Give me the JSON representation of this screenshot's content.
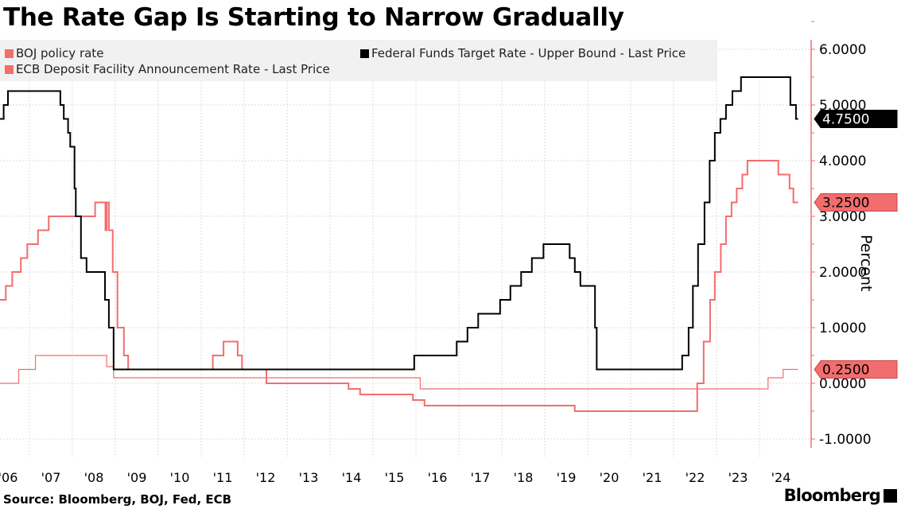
{
  "title": "The Rate Gap Is Starting to Narrow Gradually",
  "source": "Source: Bloomberg, BOJ, Fed, ECB",
  "brand": "Bloomberg",
  "chart_data": {
    "type": "line",
    "title": "The Rate Gap Is Starting to Narrow Gradually",
    "ylabel": "Percent",
    "ylim": [
      -1,
      6
    ],
    "xlim": [
      2006.3,
      2025.1
    ],
    "yticks": [
      -1,
      0,
      1,
      2,
      3,
      4,
      5,
      6
    ],
    "ytick_labels": [
      "-1.0000",
      "0.0000",
      "1.0000",
      "2.0000",
      "3.0000",
      "4.0000",
      "5.0000",
      "6.0000"
    ],
    "xtick_labels": [
      "'06",
      "'07",
      "'08",
      "'09",
      "'10",
      "'11",
      "'12",
      "'13",
      "'14",
      "'15",
      "'16",
      "'17",
      "'18",
      "'19",
      "'20",
      "'21",
      "'22",
      "'23",
      "'24"
    ],
    "xtick_years": [
      2006,
      2007,
      2008,
      2009,
      2010,
      2011,
      2012,
      2013,
      2014,
      2015,
      2016,
      2017,
      2018,
      2019,
      2020,
      2021,
      2022,
      2023,
      2024
    ],
    "grid": true,
    "legend_position": "top-left",
    "series": [
      {
        "name": "BOJ policy rate",
        "color": "#f26d6d",
        "width": 1.2,
        "last_label": "0.2500",
        "steps": [
          [
            2006.3,
            0
          ],
          [
            2006.75,
            0.25
          ],
          [
            2007.14,
            0.5
          ],
          [
            2008.8,
            0.3
          ],
          [
            2008.96,
            0.1
          ],
          [
            2016.1,
            -0.1
          ],
          [
            2024.2,
            0.1
          ],
          [
            2024.55,
            0.25
          ],
          [
            2024.9,
            0.25
          ]
        ]
      },
      {
        "name": "ECB Deposit Facility Announcement Rate - Last Price",
        "color": "#f26d6d",
        "width": 2,
        "last_label": "3.2500",
        "steps": [
          [
            2006.3,
            1.5
          ],
          [
            2006.45,
            1.75
          ],
          [
            2006.6,
            2.0
          ],
          [
            2006.8,
            2.25
          ],
          [
            2006.95,
            2.5
          ],
          [
            2007.2,
            2.75
          ],
          [
            2007.45,
            3.0
          ],
          [
            2008.53,
            3.25
          ],
          [
            2008.77,
            2.75
          ],
          [
            2008.8,
            3.25
          ],
          [
            2008.85,
            2.75
          ],
          [
            2008.94,
            2.0
          ],
          [
            2009.05,
            1.0
          ],
          [
            2009.2,
            0.5
          ],
          [
            2009.3,
            0.25
          ],
          [
            2011.27,
            0.5
          ],
          [
            2011.52,
            0.75
          ],
          [
            2011.85,
            0.5
          ],
          [
            2011.95,
            0.25
          ],
          [
            2012.52,
            0
          ],
          [
            2014.43,
            -0.1
          ],
          [
            2014.7,
            -0.2
          ],
          [
            2015.93,
            -0.3
          ],
          [
            2016.2,
            -0.4
          ],
          [
            2019.7,
            -0.5
          ],
          [
            2022.55,
            0
          ],
          [
            2022.7,
            0.75
          ],
          [
            2022.85,
            1.5
          ],
          [
            2022.96,
            2.0
          ],
          [
            2023.1,
            2.5
          ],
          [
            2023.22,
            3.0
          ],
          [
            2023.35,
            3.25
          ],
          [
            2023.47,
            3.5
          ],
          [
            2023.6,
            3.75
          ],
          [
            2023.72,
            4.0
          ],
          [
            2024.44,
            3.75
          ],
          [
            2024.7,
            3.5
          ],
          [
            2024.79,
            3.25
          ],
          [
            2024.9,
            3.25
          ]
        ]
      },
      {
        "name": "Federal Funds Target Rate - Upper Bound - Last Price",
        "color": "#000000",
        "width": 2,
        "last_label": "4.7500",
        "steps": [
          [
            2006.3,
            4.75
          ],
          [
            2006.4,
            5.0
          ],
          [
            2006.5,
            5.25
          ],
          [
            2007.72,
            5.0
          ],
          [
            2007.8,
            4.75
          ],
          [
            2007.9,
            4.5
          ],
          [
            2007.95,
            4.25
          ],
          [
            2008.05,
            3.5
          ],
          [
            2008.08,
            3.0
          ],
          [
            2008.2,
            2.25
          ],
          [
            2008.33,
            2.0
          ],
          [
            2008.76,
            1.5
          ],
          [
            2008.85,
            1.0
          ],
          [
            2008.96,
            0.25
          ],
          [
            2015.96,
            0.5
          ],
          [
            2016.95,
            0.75
          ],
          [
            2017.2,
            1.0
          ],
          [
            2017.45,
            1.25
          ],
          [
            2017.96,
            1.5
          ],
          [
            2018.2,
            1.75
          ],
          [
            2018.45,
            2.0
          ],
          [
            2018.7,
            2.25
          ],
          [
            2018.97,
            2.5
          ],
          [
            2019.58,
            2.25
          ],
          [
            2019.7,
            2.0
          ],
          [
            2019.83,
            1.75
          ],
          [
            2020.17,
            1.0
          ],
          [
            2020.21,
            0.25
          ],
          [
            2022.2,
            0.5
          ],
          [
            2022.35,
            1.0
          ],
          [
            2022.45,
            1.75
          ],
          [
            2022.57,
            2.5
          ],
          [
            2022.72,
            3.25
          ],
          [
            2022.84,
            4.0
          ],
          [
            2022.96,
            4.5
          ],
          [
            2023.09,
            4.75
          ],
          [
            2023.22,
            5.0
          ],
          [
            2023.37,
            5.25
          ],
          [
            2023.57,
            5.5
          ],
          [
            2024.72,
            5.0
          ],
          [
            2024.85,
            4.75
          ],
          [
            2024.9,
            4.75
          ]
        ]
      }
    ]
  }
}
